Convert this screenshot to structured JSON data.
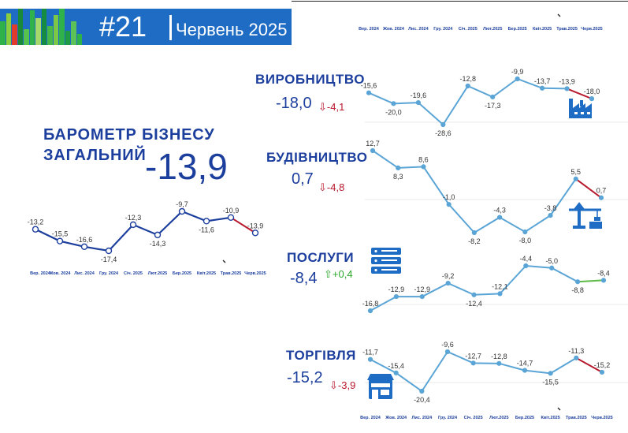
{
  "header": {
    "issue": "#21",
    "date": "Червень 2025"
  },
  "general": {
    "title_line1": "БАРОМЕТР БІЗНЕСУ",
    "title_line2": "ЗАГАЛЬНИЙ",
    "value": "-13,9"
  },
  "sectors": [
    {
      "title": "ВИРОБНИЦТВО",
      "value": "-18,0",
      "change": "-4,1",
      "arrow": "⇩",
      "trend": "down",
      "icon": "factory-icon"
    },
    {
      "title": "БУДІВНИЦТВО",
      "value": "0,7",
      "change": "-4,8",
      "arrow": "⇩",
      "trend": "down",
      "icon": "crane-icon"
    },
    {
      "title": "ПОСЛУГИ",
      "value": "-8,4",
      "change": "+0,4",
      "arrow": "⇧",
      "trend": "up",
      "icon": "server-icon"
    },
    {
      "title": "ТОРГІВЛЯ",
      "value": "-15,2",
      "change": "-3,9",
      "arrow": "⇩",
      "trend": "down",
      "icon": "shop-icon"
    }
  ],
  "colors": {
    "brand_blue": "#1f6cc4",
    "title_blue": "#1c3f9e",
    "line_light": "#5aa5d6",
    "line_dark": "#1c3f9e",
    "decline": "#b8182c",
    "increase": "#5dbb46"
  },
  "chart_data": [
    {
      "type": "line",
      "name_on_chart": "ЗАГАЛЬНИЙ",
      "categories": [
        "Вер. 2024",
        "Жов. 2024",
        "Лис. 2024",
        "Гру. 2024",
        "Січ. 2025",
        "Лют.2025",
        "Бер.2025",
        "Квіт.2025",
        "Трав.2025",
        "Черв.2025"
      ],
      "values": [
        -13.2,
        -15.5,
        -16.6,
        -17.4,
        -12.3,
        -14.3,
        -9.7,
        -11.6,
        -10.9,
        -13.9
      ],
      "labels": [
        "-13,2",
        "-15,5",
        "-16,6",
        "-17,4",
        "-12,3",
        "-14,3",
        "-9,7",
        "-11,6",
        "-10,9",
        "-13,9"
      ],
      "last_segment": "decline"
    },
    {
      "type": "line",
      "name_on_chart": "ВИРОБНИЦТВО",
      "categories": [
        "Вер. 2024",
        "Жов. 2024",
        "Лис. 2024",
        "Гру. 2024",
        "Січ. 2025",
        "Лют.2025",
        "Бер.2025",
        "Квіт.2025",
        "Трав.2025",
        "Черв.2025"
      ],
      "values": [
        -15.6,
        -20.0,
        -19.6,
        -28.6,
        -12.8,
        -17.3,
        -9.9,
        -13.7,
        -13.9,
        -18.0
      ],
      "labels": [
        "-15,6",
        "-20,0",
        "-19,6",
        "-28,6",
        "-12,8",
        "-17,3",
        "-9,9",
        "-13,7",
        "-13,9",
        "-18,0"
      ],
      "last_segment": "decline"
    },
    {
      "type": "line",
      "name_on_chart": "БУДІВНИЦТВО",
      "categories": [
        "Вер. 2024",
        "Жов. 2024",
        "Лис. 2024",
        "Гру. 2024",
        "Січ. 2025",
        "Лют.2025",
        "Бер.2025",
        "Квіт.2025",
        "Трав.2025",
        "Черв.2025"
      ],
      "values": [
        12.7,
        8.3,
        8.6,
        -1.0,
        -8.2,
        -4.3,
        -8.0,
        -3.8,
        5.5,
        0.7
      ],
      "labels": [
        "12,7",
        "8,3",
        "8,6",
        "-1,0",
        "-8,2",
        "-4,3",
        "-8,0",
        "-3,8",
        "5,5",
        "0,7"
      ],
      "last_segment": "decline"
    },
    {
      "type": "line",
      "name_on_chart": "ПОСЛУГИ",
      "categories": [
        "Вер. 2024",
        "Жов. 2024",
        "Лис. 2024",
        "Гру. 2024",
        "Січ. 2025",
        "Лют.2025",
        "Бер.2025",
        "Квіт.2025",
        "Трав.2025",
        "Черв.2025"
      ],
      "values": [
        -16.8,
        -12.9,
        -12.9,
        -9.2,
        -12.4,
        -12.1,
        -4.4,
        -5.0,
        -8.8,
        -8.4
      ],
      "labels": [
        "-16,8",
        "-12,9",
        "-12,9",
        "-9,2",
        "-12,4",
        "-12,1",
        "-4,4",
        "-5,0",
        "-8,8",
        "-8,4"
      ],
      "last_segment": "increase"
    },
    {
      "type": "line",
      "name_on_chart": "ТОРГІВЛЯ",
      "categories": [
        "Вер. 2024",
        "Жов. 2024",
        "Лис. 2024",
        "Гру. 2024",
        "Січ. 2025",
        "Лют.2025",
        "Бер.2025",
        "Квіт.2025",
        "Трав.2025",
        "Черв.2025"
      ],
      "values": [
        -11.7,
        -15.4,
        -20.4,
        -9.6,
        -12.7,
        -12.8,
        -14.7,
        -15.5,
        -11.3,
        -15.2
      ],
      "labels": [
        "-11,7",
        "-15,4",
        "-20,4",
        "-9,6",
        "-12,7",
        "-12,8",
        "-14,7",
        "-15,5",
        "-11,3",
        "-15,2"
      ],
      "last_segment": "decline"
    }
  ]
}
